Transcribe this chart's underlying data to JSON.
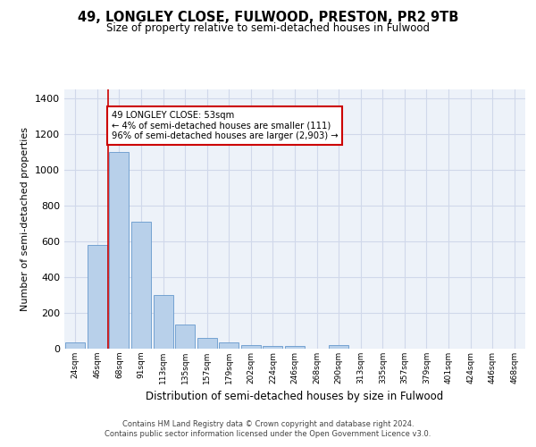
{
  "title": "49, LONGLEY CLOSE, FULWOOD, PRESTON, PR2 9TB",
  "subtitle": "Size of property relative to semi-detached houses in Fulwood",
  "xlabel": "Distribution of semi-detached houses by size in Fulwood",
  "ylabel": "Number of semi-detached properties",
  "categories": [
    "24sqm",
    "46sqm",
    "68sqm",
    "91sqm",
    "113sqm",
    "135sqm",
    "157sqm",
    "179sqm",
    "202sqm",
    "224sqm",
    "246sqm",
    "268sqm",
    "290sqm",
    "313sqm",
    "335sqm",
    "357sqm",
    "379sqm",
    "401sqm",
    "424sqm",
    "446sqm",
    "468sqm"
  ],
  "values": [
    35,
    580,
    1100,
    710,
    300,
    135,
    62,
    35,
    22,
    15,
    15,
    0,
    18,
    0,
    0,
    0,
    0,
    0,
    0,
    0,
    0
  ],
  "bar_color": "#b8d0ea",
  "bar_edge_color": "#6699cc",
  "grid_color": "#d0d8ea",
  "background_color": "#edf2f9",
  "annotation_box_text": "49 LONGLEY CLOSE: 53sqm\n← 4% of semi-detached houses are smaller (111)\n96% of semi-detached houses are larger (2,903) →",
  "annotation_box_color": "#ffffff",
  "annotation_box_edge_color": "#cc0000",
  "property_line_color": "#cc0000",
  "ylim": [
    0,
    1450
  ],
  "yticks": [
    0,
    200,
    400,
    600,
    800,
    1000,
    1200,
    1400
  ],
  "footer_line1": "Contains HM Land Registry data © Crown copyright and database right 2024.",
  "footer_line2": "Contains public sector information licensed under the Open Government Licence v3.0."
}
